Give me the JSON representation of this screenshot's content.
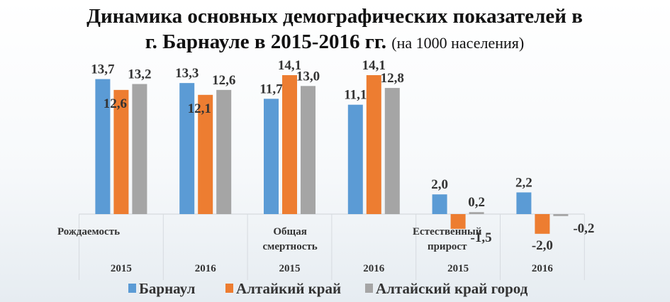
{
  "chart_data": {
    "type": "bar",
    "title": "Динамика основных демографических показателей в",
    "title_line2": "г. Барнауле в 2015-2016 гг.",
    "title_note": "(на 1000 населения)",
    "groups": [
      {
        "label_lines": [
          "Рождаемость"
        ],
        "years": [
          "2015",
          "2016"
        ]
      },
      {
        "label_lines": [
          "Общая",
          "смертность"
        ],
        "years": [
          "2015",
          "2016"
        ]
      },
      {
        "label_lines": [
          "Естественный",
          "прирост"
        ],
        "years": [
          "2015",
          "2016"
        ]
      }
    ],
    "categories": [
      "2015",
      "2016",
      "2015",
      "2016",
      "2015",
      "2016"
    ],
    "series": [
      {
        "name": "Барнаул",
        "color": "#5b9bd5",
        "values": [
          13.7,
          13.3,
          11.7,
          11.1,
          2.0,
          2.2
        ],
        "labels": [
          "13,7",
          "13,3",
          "11,7",
          "11,1",
          "2,0",
          "2,2"
        ]
      },
      {
        "name": "Алтайкий край",
        "color": "#ed7d31",
        "values": [
          12.6,
          12.1,
          14.1,
          14.1,
          -1.5,
          -2.0
        ],
        "labels": [
          "12,6",
          "12,1",
          "14,1",
          "14,1",
          "-1,5",
          "-2,0"
        ]
      },
      {
        "name": "Алтайский край город",
        "color": "#a5a5a5",
        "values": [
          13.2,
          12.6,
          13.0,
          12.8,
          0.2,
          -0.2
        ],
        "labels": [
          "13,2",
          "12,6",
          "13,0",
          "12,8",
          "0,2",
          "-0,2"
        ]
      }
    ],
    "legend_position": "bottom",
    "grid": false
  }
}
